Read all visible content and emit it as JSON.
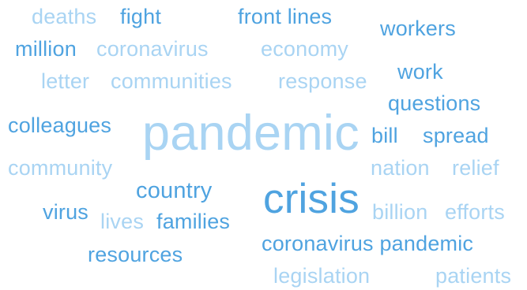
{
  "palette": {
    "dark": "#4fa3e0",
    "mid": "#78bdec",
    "light": "#a9d4f3"
  },
  "words": [
    {
      "text": "deaths",
      "shade": "light"
    },
    {
      "text": "fight",
      "shade": "dark"
    },
    {
      "text": "front lines",
      "shade": "dark"
    },
    {
      "text": "workers",
      "shade": "dark"
    },
    {
      "text": "million",
      "shade": "dark"
    },
    {
      "text": "coronavirus",
      "shade": "light"
    },
    {
      "text": "economy",
      "shade": "light"
    },
    {
      "text": "letter",
      "shade": "light"
    },
    {
      "text": "communities",
      "shade": "light"
    },
    {
      "text": "response",
      "shade": "light"
    },
    {
      "text": "work",
      "shade": "dark"
    },
    {
      "text": "questions",
      "shade": "dark"
    },
    {
      "text": "colleagues",
      "shade": "dark"
    },
    {
      "text": "pandemic",
      "shade": "light"
    },
    {
      "text": "bill",
      "shade": "dark"
    },
    {
      "text": "spread",
      "shade": "dark"
    },
    {
      "text": "community",
      "shade": "light"
    },
    {
      "text": "nation",
      "shade": "light"
    },
    {
      "text": "relief",
      "shade": "light"
    },
    {
      "text": "country",
      "shade": "dark"
    },
    {
      "text": "crisis",
      "shade": "dark"
    },
    {
      "text": "virus",
      "shade": "dark"
    },
    {
      "text": "lives",
      "shade": "light"
    },
    {
      "text": "families",
      "shade": "dark"
    },
    {
      "text": "billion",
      "shade": "light"
    },
    {
      "text": "efforts",
      "shade": "light"
    },
    {
      "text": "coronavirus pandemic",
      "shade": "dark"
    },
    {
      "text": "resources",
      "shade": "dark"
    },
    {
      "text": "legislation",
      "shade": "light"
    },
    {
      "text": "patients",
      "shade": "light"
    }
  ]
}
